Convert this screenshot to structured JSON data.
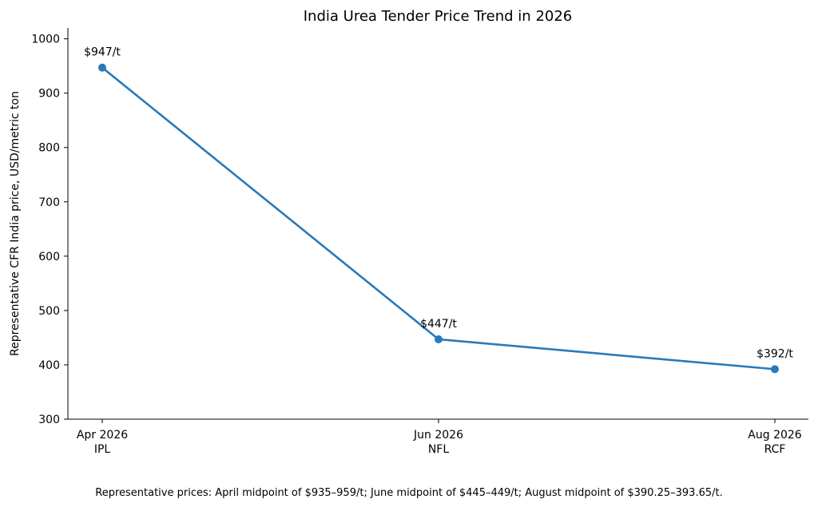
{
  "chart_data": {
    "type": "line",
    "title": "India Urea Tender Price Trend in 2026",
    "xlabel": "",
    "ylabel": "Representative CFR India price, USD/metric ton",
    "categories": [
      [
        "Apr 2026",
        "IPL"
      ],
      [
        "Jun 2026",
        "NFL"
      ],
      [
        "Aug 2026",
        "RCF"
      ]
    ],
    "series": [
      {
        "values": [
          947,
          447,
          392
        ],
        "data_labels": [
          "$947/t",
          "$447/t",
          "$392/t"
        ],
        "color": "#2a7ab8"
      }
    ],
    "ylim": [
      300,
      1020
    ],
    "yticks": [
      300,
      400,
      500,
      600,
      700,
      800,
      900,
      1000
    ],
    "grid": false,
    "legend": "none"
  },
  "footnote": "Representative prices: April midpoint of $935–959/t; June midpoint of $445–449/t; August midpoint of $390.25–393.65/t."
}
